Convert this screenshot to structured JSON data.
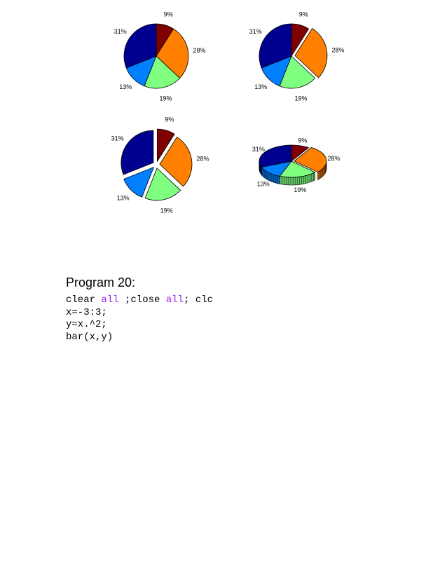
{
  "figure": {
    "colors": [
      "#800000",
      "#ff8000",
      "#80ff80",
      "#0080ff",
      "#000090"
    ],
    "pies": [
      {
        "percents": [
          "9%",
          "28%",
          "19%",
          "13%",
          "31%"
        ],
        "explode": [
          0,
          0,
          0,
          0,
          0
        ]
      },
      {
        "percents": [
          "9%",
          "28%",
          "19%",
          "13%",
          "31%"
        ],
        "explode": [
          0,
          1,
          0,
          0,
          0
        ]
      },
      {
        "percents": [
          "9%",
          "28%",
          "19%",
          "13%",
          "31%"
        ],
        "explode": [
          1,
          1,
          1,
          1,
          1
        ]
      },
      {
        "percents": [
          "9%",
          "28%",
          "19%",
          "13%",
          "31%"
        ],
        "explode": [
          0,
          1,
          0,
          0,
          0
        ],
        "style": "3d"
      }
    ]
  },
  "chart_data": [
    {
      "type": "pie",
      "labels": [
        "9%",
        "28%",
        "19%",
        "13%",
        "31%"
      ],
      "values": [
        9,
        28,
        19,
        13,
        31
      ],
      "explode": [
        0,
        0,
        0,
        0,
        0
      ]
    },
    {
      "type": "pie",
      "labels": [
        "9%",
        "28%",
        "19%",
        "13%",
        "31%"
      ],
      "values": [
        9,
        28,
        19,
        13,
        31
      ],
      "explode": [
        0,
        1,
        0,
        0,
        0
      ]
    },
    {
      "type": "pie",
      "labels": [
        "9%",
        "28%",
        "19%",
        "13%",
        "31%"
      ],
      "values": [
        9,
        28,
        19,
        13,
        31
      ],
      "explode": [
        1,
        1,
        1,
        1,
        1
      ]
    },
    {
      "type": "pie",
      "labels": [
        "9%",
        "28%",
        "19%",
        "13%",
        "31%"
      ],
      "values": [
        9,
        28,
        19,
        13,
        31
      ],
      "explode": [
        0,
        1,
        0,
        0,
        0
      ],
      "style": "3d"
    }
  ],
  "program": {
    "heading": "Program 20:",
    "code": {
      "l1a": "clear ",
      "l1b": "all",
      "l1c": " ;close ",
      "l1d": "all",
      "l1e": "; clc",
      "l2": "x=-3:3;",
      "l3": "y=x.^2;",
      "l4": "bar(x,y)"
    },
    "keyword_color": "#a020f0"
  }
}
